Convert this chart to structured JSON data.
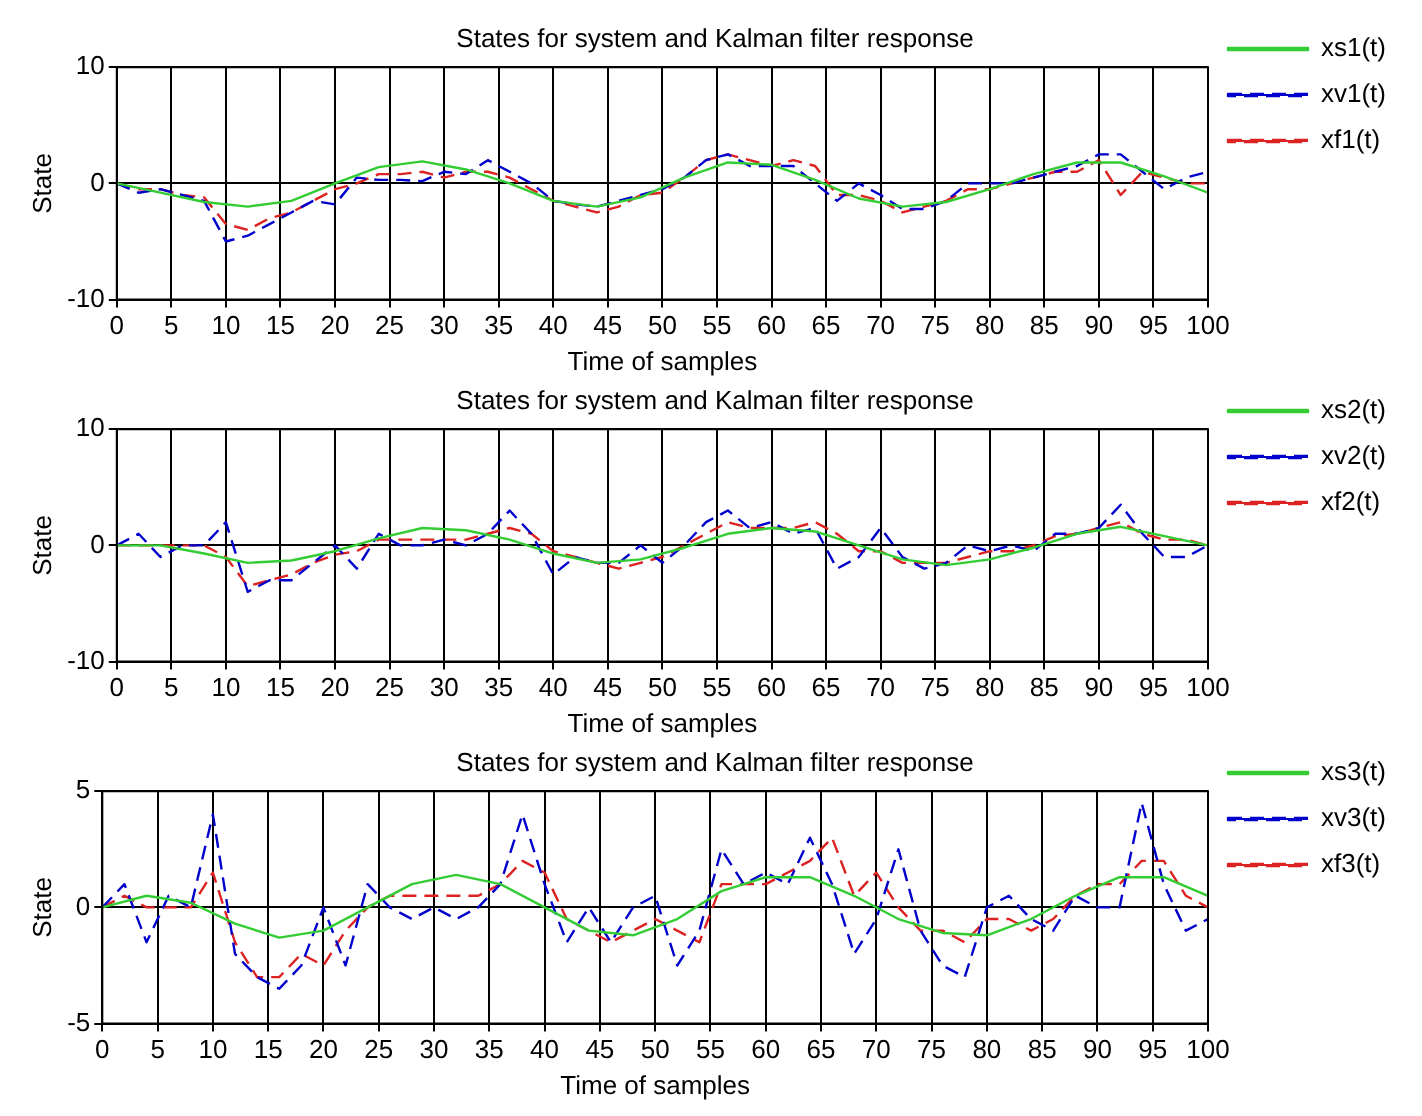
{
  "chart_data": [
    {
      "type": "line",
      "title": "States for system and Kalman filter response",
      "xlabel": "Time of samples",
      "ylabel": "State",
      "xlim": [
        0,
        100
      ],
      "xticks": [
        0,
        5,
        10,
        15,
        20,
        25,
        30,
        35,
        40,
        45,
        50,
        55,
        60,
        65,
        70,
        75,
        80,
        85,
        90,
        95,
        100
      ],
      "ylim": [
        -10,
        10
      ],
      "yticks": [
        -10,
        0,
        10
      ],
      "grid": true,
      "legend": "top right",
      "series": [
        {
          "name": "xs1(t)",
          "color": "#33cc33",
          "line_style": "solid",
          "x": [
            0,
            4,
            8,
            12,
            16,
            20,
            24,
            28,
            32,
            36,
            40,
            44,
            48,
            52,
            56,
            60,
            64,
            68,
            72,
            76,
            80,
            84,
            88,
            92,
            96,
            100
          ],
          "values": [
            0,
            -0.8,
            -1.6,
            -2,
            -1.5,
            0,
            1.4,
            1.9,
            1.2,
            0,
            -1.5,
            -2,
            -1.2,
            0.5,
            1.8,
            1.6,
            0.3,
            -1.3,
            -2,
            -1.6,
            -0.5,
            0.8,
            1.8,
            1.8,
            0.6,
            -0.8
          ]
        },
        {
          "name": "xv1(t)",
          "color": "#0000cc",
          "line_style": "dashed",
          "x": [
            0,
            2,
            4,
            6,
            8,
            10,
            12,
            14,
            16,
            18,
            20,
            22,
            24,
            26,
            28,
            30,
            32,
            34,
            36,
            38,
            40,
            42,
            44,
            46,
            48,
            50,
            52,
            54,
            56,
            58,
            60,
            62,
            64,
            66,
            68,
            70,
            72,
            74,
            76,
            78,
            80,
            82,
            84,
            86,
            88,
            90,
            92,
            94,
            96,
            98,
            100
          ],
          "values": [
            0,
            -0.8,
            -0.5,
            -1,
            -1.5,
            -5,
            -4.5,
            -3.5,
            -2.5,
            -1.5,
            -1.8,
            0.5,
            0.3,
            0.3,
            0.2,
            1,
            0.8,
            2,
            1,
            0,
            -1.5,
            -1.8,
            -2,
            -1.5,
            -1,
            -0.5,
            0.5,
            2,
            2.5,
            1.5,
            1.5,
            1.5,
            0,
            -1.5,
            0,
            -1,
            -2.2,
            -2.2,
            -1.5,
            0,
            0,
            0,
            0.5,
            1,
            1.5,
            2.5,
            2.5,
            1,
            -0.5,
            0.5,
            1
          ]
        },
        {
          "name": "xf1(t)",
          "color": "#dd2222",
          "line_style": "dashed",
          "x": [
            0,
            2,
            4,
            6,
            8,
            10,
            12,
            14,
            16,
            18,
            20,
            22,
            24,
            26,
            28,
            30,
            32,
            34,
            36,
            38,
            40,
            42,
            44,
            46,
            48,
            50,
            52,
            54,
            56,
            58,
            60,
            62,
            64,
            66,
            68,
            70,
            72,
            74,
            76,
            78,
            80,
            82,
            84,
            86,
            88,
            90,
            92,
            94,
            96,
            98,
            100
          ],
          "values": [
            0,
            -0.5,
            -0.5,
            -1,
            -1.2,
            -3.5,
            -4,
            -3,
            -2.5,
            -1.5,
            -0.5,
            0,
            0.8,
            0.8,
            1,
            0.5,
            1,
            1,
            0.5,
            -0.5,
            -1.5,
            -2,
            -2.5,
            -2,
            -1,
            -0.8,
            0.5,
            2,
            2.5,
            2,
            1.5,
            2,
            1.5,
            -1,
            -1,
            -1.5,
            -2.5,
            -2,
            -1.5,
            -0.5,
            -0.5,
            0,
            0.5,
            1,
            1,
            2,
            -1,
            1,
            0.5,
            0,
            0
          ]
        }
      ]
    },
    {
      "type": "line",
      "title": "States for system and Kalman filter response",
      "xlabel": "Time of samples",
      "ylabel": "State",
      "xlim": [
        0,
        100
      ],
      "xticks": [
        0,
        5,
        10,
        15,
        20,
        25,
        30,
        35,
        40,
        45,
        50,
        55,
        60,
        65,
        70,
        75,
        80,
        85,
        90,
        95,
        100
      ],
      "ylim": [
        -10,
        10
      ],
      "yticks": [
        -10,
        0,
        10
      ],
      "grid": true,
      "legend": "top right",
      "series": [
        {
          "name": "xs2(t)",
          "color": "#33cc33",
          "line_style": "solid",
          "x": [
            0,
            4,
            8,
            12,
            16,
            20,
            24,
            28,
            32,
            36,
            40,
            44,
            48,
            52,
            56,
            60,
            64,
            68,
            72,
            76,
            80,
            84,
            88,
            92,
            96,
            100
          ],
          "values": [
            0,
            0,
            -0.7,
            -1.5,
            -1.3,
            -0.5,
            0.6,
            1.5,
            1.3,
            0.5,
            -0.7,
            -1.5,
            -1.2,
            -0.2,
            1,
            1.5,
            1.2,
            0,
            -1.2,
            -1.7,
            -1.2,
            -0.2,
            1,
            1.6,
            0.8,
            0
          ]
        },
        {
          "name": "xv2(t)",
          "color": "#0000cc",
          "line_style": "dashed",
          "x": [
            0,
            2,
            4,
            6,
            8,
            10,
            12,
            14,
            16,
            18,
            20,
            22,
            24,
            26,
            28,
            30,
            32,
            34,
            36,
            38,
            40,
            42,
            44,
            46,
            48,
            50,
            52,
            54,
            56,
            58,
            60,
            62,
            64,
            66,
            68,
            70,
            72,
            74,
            76,
            78,
            80,
            82,
            84,
            86,
            88,
            90,
            92,
            94,
            96,
            98,
            100
          ],
          "values": [
            0,
            1,
            -1,
            0,
            0,
            2,
            -4,
            -3,
            -3,
            -1.5,
            0,
            -2,
            1,
            0,
            0,
            0.5,
            0,
            1,
            3,
            1,
            -2.5,
            -1,
            -1.5,
            -1.5,
            0,
            -1.5,
            0,
            2,
            3,
            1.5,
            2,
            1,
            1.5,
            -2,
            -1,
            1.5,
            -1,
            -2,
            -1.5,
            0,
            -0.5,
            0,
            -0.5,
            1,
            1,
            1.5,
            3.5,
            1,
            -1,
            -1,
            0
          ]
        },
        {
          "name": "xf2(t)",
          "color": "#dd2222",
          "line_style": "dashed",
          "x": [
            0,
            2,
            4,
            6,
            8,
            10,
            12,
            14,
            16,
            18,
            20,
            22,
            24,
            26,
            28,
            30,
            32,
            34,
            36,
            38,
            40,
            42,
            44,
            46,
            48,
            50,
            52,
            54,
            56,
            58,
            60,
            62,
            64,
            66,
            68,
            70,
            72,
            74,
            76,
            78,
            80,
            82,
            84,
            86,
            88,
            90,
            92,
            94,
            96,
            98,
            100
          ],
          "values": [
            0,
            0,
            0,
            0,
            0,
            -1,
            -3.5,
            -3,
            -2.5,
            -1.5,
            -0.8,
            -0.5,
            0.5,
            0.5,
            0.5,
            0.5,
            0.5,
            1,
            1.5,
            1,
            -0.5,
            -1,
            -1.5,
            -2,
            -1.5,
            -1,
            0,
            1,
            2,
            1.5,
            1.5,
            1.5,
            2,
            1,
            -0.5,
            -0.5,
            -1.5,
            -1.5,
            -1.5,
            -1,
            -0.5,
            -0.5,
            0,
            0.8,
            1,
            1.5,
            2,
            1,
            0.5,
            0.5,
            0
          ]
        }
      ]
    },
    {
      "type": "line",
      "title": "States for system and Kalman filter response",
      "xlabel": "Time of samples",
      "ylabel": "State",
      "xlim": [
        0,
        100
      ],
      "xticks": [
        0,
        5,
        10,
        15,
        20,
        25,
        30,
        35,
        40,
        45,
        50,
        55,
        60,
        65,
        70,
        75,
        80,
        85,
        90,
        95,
        100
      ],
      "ylim": [
        -5,
        5
      ],
      "yticks": [
        -5,
        0,
        5
      ],
      "grid": true,
      "legend": "top right",
      "series": [
        {
          "name": "xs3(t)",
          "color": "#33cc33",
          "line_style": "solid",
          "x": [
            0,
            4,
            8,
            12,
            16,
            20,
            24,
            28,
            32,
            36,
            40,
            44,
            48,
            52,
            56,
            60,
            64,
            68,
            72,
            76,
            80,
            84,
            88,
            92,
            96,
            100
          ],
          "values": [
            0,
            0.5,
            0.2,
            -0.7,
            -1.3,
            -1,
            0,
            1,
            1.4,
            1,
            0,
            -1,
            -1.2,
            -0.5,
            0.7,
            1.3,
            1.3,
            0.5,
            -0.5,
            -1.1,
            -1.2,
            -0.5,
            0.5,
            1.3,
            1.3,
            0.5
          ]
        },
        {
          "name": "xv3(t)",
          "color": "#0000cc",
          "line_style": "dashed",
          "x": [
            0,
            2,
            4,
            6,
            8,
            10,
            12,
            14,
            16,
            18,
            20,
            22,
            24,
            26,
            28,
            30,
            32,
            34,
            36,
            38,
            40,
            42,
            44,
            46,
            48,
            50,
            52,
            54,
            56,
            58,
            60,
            62,
            64,
            66,
            68,
            70,
            72,
            74,
            76,
            78,
            80,
            82,
            84,
            86,
            88,
            90,
            92,
            94,
            96,
            98,
            100
          ],
          "values": [
            0,
            1,
            -1.5,
            0.5,
            0,
            4,
            -2,
            -3,
            -3.5,
            -2.5,
            0,
            -2.5,
            1,
            0,
            -0.5,
            0,
            -0.5,
            0,
            1,
            4,
            1,
            -1.5,
            0,
            -1.5,
            0,
            0.5,
            -2.5,
            -1,
            2.5,
            1,
            1.5,
            1,
            3,
            1,
            -2,
            -0.5,
            2.5,
            -1,
            -2.5,
            -3,
            0,
            0.5,
            -0.5,
            -1,
            0.5,
            0,
            0,
            4.5,
            1,
            -1,
            -0.5
          ]
        },
        {
          "name": "xf3(t)",
          "color": "#dd2222",
          "line_style": "dashed",
          "x": [
            0,
            2,
            4,
            6,
            8,
            10,
            12,
            14,
            16,
            18,
            20,
            22,
            24,
            26,
            28,
            30,
            32,
            34,
            36,
            38,
            40,
            42,
            44,
            46,
            48,
            50,
            52,
            54,
            56,
            58,
            60,
            62,
            64,
            66,
            68,
            70,
            72,
            74,
            76,
            78,
            80,
            82,
            84,
            86,
            88,
            90,
            92,
            94,
            96,
            98,
            100
          ],
          "values": [
            0,
            0.5,
            0,
            0,
            0,
            1.5,
            -1.5,
            -3,
            -3,
            -2,
            -2.5,
            -1,
            0,
            0.5,
            0.5,
            0.5,
            0.5,
            0.5,
            1,
            2,
            1.5,
            -0.5,
            -1,
            -1.5,
            -1,
            -0.5,
            -1,
            -1.5,
            1,
            1,
            1,
            1.5,
            2,
            3,
            0.5,
            1.5,
            0,
            -1,
            -1,
            -1.5,
            -0.5,
            -0.5,
            -1,
            -0.5,
            0.5,
            1,
            1,
            2,
            2,
            0.5,
            0
          ]
        }
      ]
    }
  ]
}
